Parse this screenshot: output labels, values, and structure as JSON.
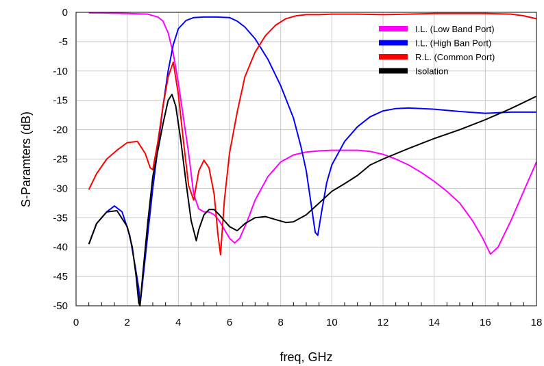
{
  "chart_data": {
    "type": "line",
    "title": "",
    "xlabel": "freq, GHz",
    "ylabel": "S-Paramters (dB)",
    "xlim": [
      0,
      18
    ],
    "ylim": [
      -50,
      0
    ],
    "xticks": [
      0,
      2,
      4,
      6,
      8,
      10,
      12,
      14,
      16,
      18
    ],
    "yticks": [
      0,
      -5,
      -10,
      -15,
      -20,
      -25,
      -30,
      -35,
      -40,
      -45,
      -50
    ],
    "grid": true,
    "legend_position": "top-right",
    "series": [
      {
        "name": "I.L. (Low Band Port)",
        "color": "#ff00ff",
        "x": [
          0.5,
          1.0,
          2.0,
          2.8,
          3.2,
          3.4,
          3.6,
          3.8,
          4.0,
          4.2,
          4.4,
          4.6,
          4.8,
          5.0,
          5.2,
          5.4,
          5.6,
          5.8,
          6.0,
          6.2,
          6.4,
          6.7,
          7.0,
          7.5,
          8.0,
          8.5,
          9.0,
          9.5,
          10.0,
          10.5,
          11.0,
          11.5,
          12.0,
          12.5,
          13.0,
          13.5,
          14.0,
          14.5,
          15.0,
          15.5,
          15.9,
          16.2,
          16.5,
          17.0,
          17.5,
          18.0
        ],
        "y": [
          -0.1,
          -0.1,
          -0.2,
          -0.3,
          -0.8,
          -1.5,
          -3.5,
          -7,
          -12,
          -18,
          -24,
          -31,
          -33.5,
          -34,
          -34,
          -34.5,
          -35.5,
          -37,
          -38.5,
          -39.3,
          -38.5,
          -35.5,
          -32,
          -28,
          -25.5,
          -24.3,
          -23.8,
          -23.6,
          -23.5,
          -23.5,
          -23.5,
          -23.7,
          -24.2,
          -25,
          -26,
          -27.3,
          -28.8,
          -30.5,
          -32.5,
          -35.5,
          -38.5,
          -41.2,
          -40,
          -35.5,
          -30.5,
          -25.5
        ]
      },
      {
        "name": "I.L. (High Ban Port)",
        "color": "#0000ff",
        "x": [
          0.5,
          0.8,
          1.2,
          1.5,
          1.8,
          2.1,
          2.3,
          2.45,
          2.5,
          2.6,
          2.8,
          3.0,
          3.2,
          3.4,
          3.6,
          3.8,
          4.0,
          4.3,
          4.6,
          5.0,
          5.5,
          6.0,
          6.3,
          6.6,
          7.0,
          7.5,
          8.0,
          8.5,
          8.8,
          9.0,
          9.2,
          9.35,
          9.45,
          9.6,
          9.8,
          10.0,
          10.5,
          11.0,
          11.5,
          12.0,
          12.5,
          13.0,
          14.0,
          15.0,
          16.0,
          17.0,
          18.0
        ],
        "y": [
          -39.5,
          -36,
          -34,
          -33,
          -34,
          -38,
          -43,
          -47,
          -50,
          -46,
          -38,
          -30,
          -23,
          -16,
          -10,
          -5.5,
          -2.8,
          -1.4,
          -0.9,
          -0.8,
          -0.8,
          -0.9,
          -1.5,
          -2.5,
          -4.5,
          -8,
          -12.5,
          -18,
          -23,
          -27,
          -33,
          -37.5,
          -38,
          -34,
          -29,
          -26,
          -22,
          -19.5,
          -17.8,
          -16.8,
          -16.4,
          -16.3,
          -16.5,
          -16.9,
          -17.2,
          -17.0,
          -17.0
        ]
      },
      {
        "name": "R.L. (Common Port)",
        "color": "#ff0000",
        "x": [
          0.5,
          0.8,
          1.2,
          1.6,
          2.0,
          2.4,
          2.7,
          2.9,
          3.0,
          3.2,
          3.4,
          3.6,
          3.8,
          4.0,
          4.2,
          4.4,
          4.6,
          4.8,
          5.0,
          5.2,
          5.4,
          5.55,
          5.65,
          5.8,
          6.0,
          6.3,
          6.6,
          7.0,
          7.4,
          7.8,
          8.2,
          8.6,
          9.0,
          9.5,
          10.0,
          11.0,
          12.0,
          13.0,
          14.0,
          15.0,
          16.0,
          17.0,
          17.5,
          18.0
        ],
        "y": [
          -30.2,
          -27.5,
          -25,
          -23.5,
          -22.2,
          -22,
          -24,
          -26.5,
          -26.8,
          -22,
          -16,
          -11,
          -8.5,
          -14,
          -22,
          -29.5,
          -32,
          -27,
          -25.2,
          -26.5,
          -31,
          -38,
          -41.3,
          -32,
          -24,
          -17,
          -11,
          -6.8,
          -4,
          -2.2,
          -1.1,
          -0.6,
          -0.4,
          -0.4,
          -0.3,
          -0.3,
          -0.4,
          -0.3,
          -0.2,
          -0.2,
          -0.2,
          -0.3,
          -0.6,
          -1.1
        ]
      },
      {
        "name": "Isolation",
        "color": "#000000",
        "x": [
          0.5,
          0.8,
          1.2,
          1.6,
          2.0,
          2.2,
          2.35,
          2.45,
          2.5,
          2.6,
          2.8,
          3.0,
          3.2,
          3.4,
          3.6,
          3.75,
          3.9,
          4.1,
          4.3,
          4.5,
          4.7,
          4.8,
          5.0,
          5.2,
          5.4,
          5.6,
          5.8,
          6.0,
          6.3,
          6.6,
          7.0,
          7.4,
          7.8,
          8.2,
          8.5,
          9.0,
          9.5,
          10.0,
          10.5,
          11.0,
          11.5,
          12.0,
          13.0,
          14.0,
          15.0,
          16.0,
          17.0,
          18.0
        ],
        "y": [
          -39.5,
          -36,
          -34,
          -33.8,
          -36.5,
          -40,
          -45,
          -49.5,
          -50,
          -45,
          -36,
          -28,
          -23.5,
          -19,
          -15,
          -14,
          -16,
          -22,
          -29,
          -35.5,
          -38.9,
          -37,
          -34.5,
          -33.6,
          -33.6,
          -34.5,
          -35.5,
          -36.5,
          -37.2,
          -36,
          -35,
          -34.8,
          -35.3,
          -35.8,
          -35.7,
          -34.5,
          -32.5,
          -30.5,
          -29.2,
          -27.8,
          -26,
          -25,
          -23.2,
          -21.5,
          -20,
          -18.3,
          -16.4,
          -14.3
        ]
      }
    ]
  }
}
